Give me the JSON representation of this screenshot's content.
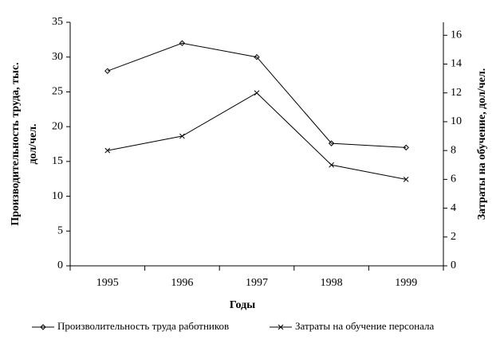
{
  "chart_data": {
    "type": "line",
    "categories": [
      "1995",
      "1996",
      "1997",
      "1998",
      "1999"
    ],
    "series": [
      {
        "name": "Произволительность труда работников",
        "color": "#000000",
        "marker": "diamond",
        "values": [
          28,
          32,
          30,
          17.6,
          17
        ]
      },
      {
        "name": "Затраты на обучение персонала",
        "color": "#000000",
        "marker": "x",
        "axis": "y2",
        "values": [
          8,
          9,
          12,
          7,
          6
        ]
      }
    ],
    "xlabel": "Годы",
    "ylabel": [
      "Производительность труда, тыс.",
      "дол/чел."
    ],
    "y2label": "Затраты на обучение, дол/чел.",
    "ylim": [
      0,
      35
    ],
    "yticks": [
      0,
      5,
      10,
      15,
      20,
      25,
      30,
      35
    ],
    "y2lim": [
      0,
      16.9
    ],
    "y2ticks": [
      0,
      2,
      4,
      6,
      8,
      10,
      12,
      14,
      16
    ],
    "legend": "bottom"
  }
}
